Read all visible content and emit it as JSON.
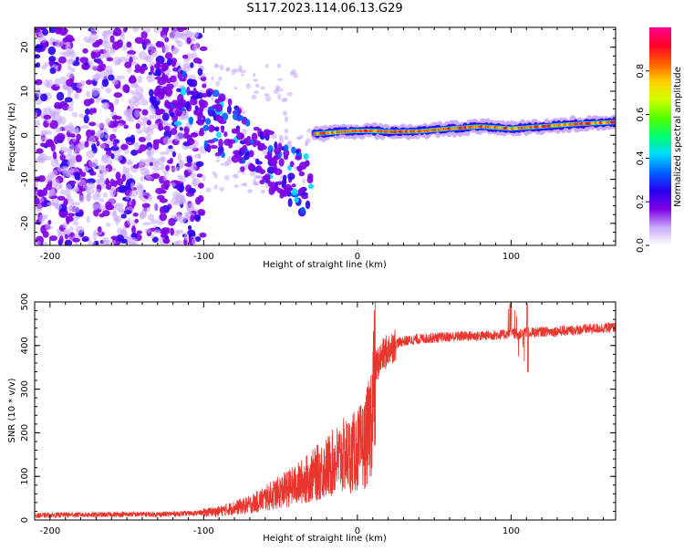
{
  "title": "S117.2023.114.06.13.G29",
  "colors": {
    "snr_line": "#e8352d",
    "axis": "#000000"
  },
  "chart_data": [
    {
      "type": "heatmap",
      "xlabel": "Height of straight line (km)",
      "ylabel": "Frequency (Hz)",
      "xlim": [
        -210,
        168
      ],
      "ylim": [
        -25,
        24.5
      ],
      "xticks": [
        -200,
        -100,
        0,
        100
      ],
      "yticks": [
        -20,
        -10,
        0,
        10,
        20
      ],
      "colorbar": {
        "label": "Normalized spectral amplitude",
        "ticks": [
          0.0,
          0.2,
          0.4,
          0.6,
          0.8
        ],
        "range": [
          0,
          1
        ],
        "colormap": [
          "#ffffff",
          "#c8a8f8",
          "#7d00e6",
          "#2a00f0",
          "#0060ff",
          "#00d8ff",
          "#00ff70",
          "#50ff00",
          "#d0ff00",
          "#ffd000",
          "#ff6000",
          "#ff0028",
          "#ff0090"
        ]
      },
      "tracks": [
        {
          "description": "dominant frequency ridge",
          "x": [
            -28,
            -20,
            -10,
            0,
            10,
            20,
            40,
            60,
            80,
            100,
            120,
            140,
            168
          ],
          "y": [
            0.3,
            0.5,
            0.8,
            1.0,
            1.0,
            0.8,
            0.9,
            1.5,
            2.0,
            1.5,
            2.0,
            2.5,
            3.0
          ]
        },
        {
          "description": "scattered noise cloud",
          "x": [
            -210,
            -100
          ],
          "y": [
            -25,
            24.5
          ]
        },
        {
          "description": "descending streaks",
          "x": [
            -130,
            -30
          ],
          "y": [
            12,
            -12
          ]
        }
      ]
    },
    {
      "type": "line",
      "xlabel": "Height of straight line (km)",
      "ylabel": "SNR (10 * v/v)",
      "xlim": [
        -210,
        168
      ],
      "ylim": [
        0,
        500
      ],
      "xticks": [
        -200,
        -100,
        0,
        100
      ],
      "yticks": [
        0,
        100,
        200,
        300,
        400,
        500
      ],
      "series": [
        {
          "x": [
            -210,
            -190,
            -170,
            -150,
            -130,
            -110,
            -100,
            -90,
            -80,
            -70,
            -60,
            -50,
            -40,
            -30,
            -20,
            -10,
            -5,
            0,
            5,
            8,
            10,
            12,
            15,
            20,
            25,
            30,
            40,
            50,
            60,
            70,
            80,
            90,
            95,
            100,
            105,
            110,
            115,
            120,
            130,
            140,
            150,
            160,
            168
          ],
          "y": [
            10,
            12,
            12,
            13,
            13,
            15,
            17,
            20,
            28,
            35,
            50,
            65,
            80,
            100,
            120,
            145,
            150,
            160,
            175,
            210,
            280,
            350,
            370,
            390,
            405,
            410,
            415,
            418,
            420,
            422,
            422,
            425,
            425,
            428,
            425,
            430,
            430,
            432,
            433,
            435,
            438,
            440,
            442
          ]
        }
      ]
    }
  ]
}
